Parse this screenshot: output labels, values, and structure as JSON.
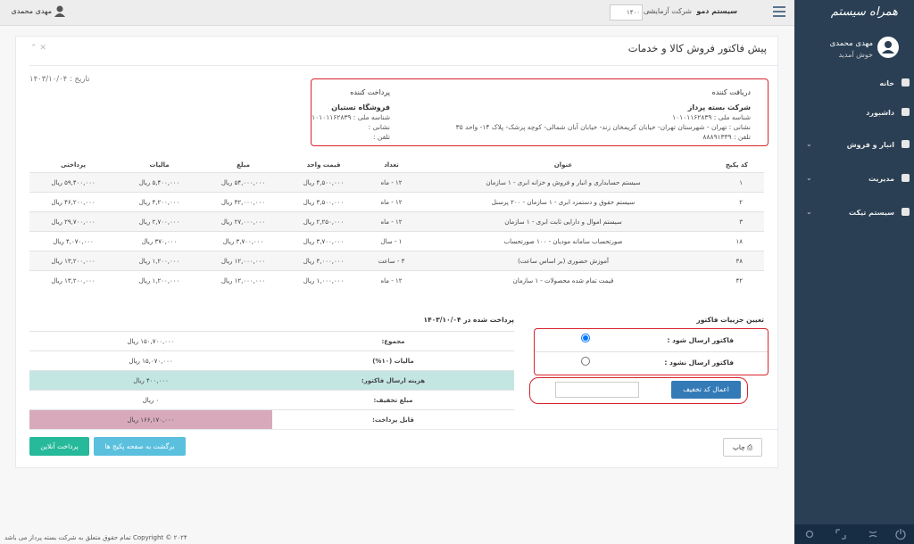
{
  "sidebar": {
    "logo": "همراه سیستم",
    "user_name": "مهدی محمدی",
    "welcome": "خوش آمدید",
    "menu": [
      "خانه",
      "داشبورد",
      "انبار و فروش",
      "مدیریت",
      "سیستم تیکت"
    ]
  },
  "topbar": {
    "system": "سیستم دمو",
    "company": "شرکت آزمایشی",
    "separator": "-",
    "year": "۱۴۰۰",
    "user": "مهدی محمدی"
  },
  "panel": {
    "title": "پیش فاکتور فروش کالا و خدمات",
    "date": "تاریخ : ۱۴۰۳/۱۰/۰۴"
  },
  "receiver": {
    "heading": "دریافت کننده",
    "name": "شرکت بسته پرداز",
    "national_id": "شناسه ملی : ۱۰۱۰۱۱۶۲۸۳۹",
    "address": "نشانی : تهران - شهرستان تهران- خیابان کریمخان زند- خیابان آبان شمالی- کوچه پزشک- پلاک ۱۴- واحد ۳۵",
    "phone": "تلفن : ۸۸۸۹۱۳۳۹"
  },
  "payer": {
    "heading": "پرداخت کننده",
    "name": "فروشگاه تستیان",
    "national_id": "شناسه ملی : ۱۰۱۰۱۱۶۲۸۳۹",
    "address": "نشانی :",
    "phone": "تلفن :"
  },
  "table": {
    "header": [
      "کد پکیج",
      "عنوان",
      "تعداد",
      "قیمت واحد",
      "مبلغ",
      "مالیات",
      "پرداختی"
    ],
    "rows": [
      [
        "۱",
        "سیستم حسابداری و انبار و فروش و خزانه ابری - ۱ سازمان",
        "۱۲ - ماه",
        "۴,۵۰۰,۰۰۰ ریال",
        "۵۴,۰۰۰,۰۰۰ ریال",
        "۵,۴۰۰,۰۰۰ ریال",
        "۵۹,۴۰۰,۰۰۰ ریال"
      ],
      [
        "۲",
        "سیستم حقوق و دستمزد ابری - ۱ سازمان - ۲۰۰ پرسنل",
        "۱۲ - ماه",
        "۳,۵۰۰,۰۰۰ ریال",
        "۴۲,۰۰۰,۰۰۰ ریال",
        "۴,۲۰۰,۰۰۰ ریال",
        "۴۶,۲۰۰,۰۰۰ ریال"
      ],
      [
        "۳",
        "سیستم اموال و دارایی ثابت ابری - ۱ سازمان",
        "۱۲ - ماه",
        "۲,۲۵۰,۰۰۰ ریال",
        "۲۷,۰۰۰,۰۰۰ ریال",
        "۲,۷۰۰,۰۰۰ ریال",
        "۲۹,۷۰۰,۰۰۰ ریال"
      ],
      [
        "۱۸",
        "صورتحساب سامانه مودیان - ۱۰۰ صورتحساب",
        "۱ - سال",
        "۳,۷۰۰,۰۰۰ ریال",
        "۳,۷۰۰,۰۰۰ ریال",
        "۳۷۰,۰۰۰ ریال",
        "۴,۰۷۰,۰۰۰ ریال"
      ],
      [
        "۳۸",
        "آموزش حضوری (بر اساس ساعت)",
        "۳ - ساعت",
        "۴,۰۰۰,۰۰۰ ریال",
        "۱۲,۰۰۰,۰۰۰ ریال",
        "۱,۲۰۰,۰۰۰ ریال",
        "۱۳,۲۰۰,۰۰۰ ریال"
      ],
      [
        "۴۲",
        "قیمت تمام شده محصولات - ۱ سازمان",
        "۱۲ - ماه",
        "۱,۰۰۰,۰۰۰ ریال",
        "۱۲,۰۰۰,۰۰۰ ریال",
        "۱,۲۰۰,۰۰۰ ریال",
        "۱۳,۲۰۰,۰۰۰ ریال"
      ]
    ]
  },
  "summary": {
    "paid_note": "پرداخت شده در ۱۴۰۳/۱۰/۰۴",
    "rows": [
      [
        "مجموع:",
        "۱۵۰,۷۰۰,۰۰۰ ریال"
      ],
      [
        "مالیات (۱۰%)",
        "۱۵,۰۷۰,۰۰۰ ریال"
      ],
      [
        "هزینه ارسال فاکتور:",
        "۴۰۰,۰۰۰ ریال"
      ],
      [
        "مبلغ تخفیف:",
        "۰ ریال"
      ],
      [
        "قابل پرداخت:",
        "۱۶۶,۱۷۰,۰۰۰ ریال"
      ]
    ]
  },
  "options": {
    "heading": "تعیین جزییات فاکتور",
    "send": "فاکتور ارسال شود :",
    "no_send": "فاکتور ارسال نشود :",
    "discount_button": "اعمال کد تخفیف"
  },
  "buttons": {
    "print": "چاپ",
    "back": "برگشت به صفحه پکیج ها",
    "pay": "پرداخت آنلاین"
  },
  "footer": "Copyright © ۲۰۲۴ تمام حقوق متعلق به شرکت بسته پرداز می باشد"
}
